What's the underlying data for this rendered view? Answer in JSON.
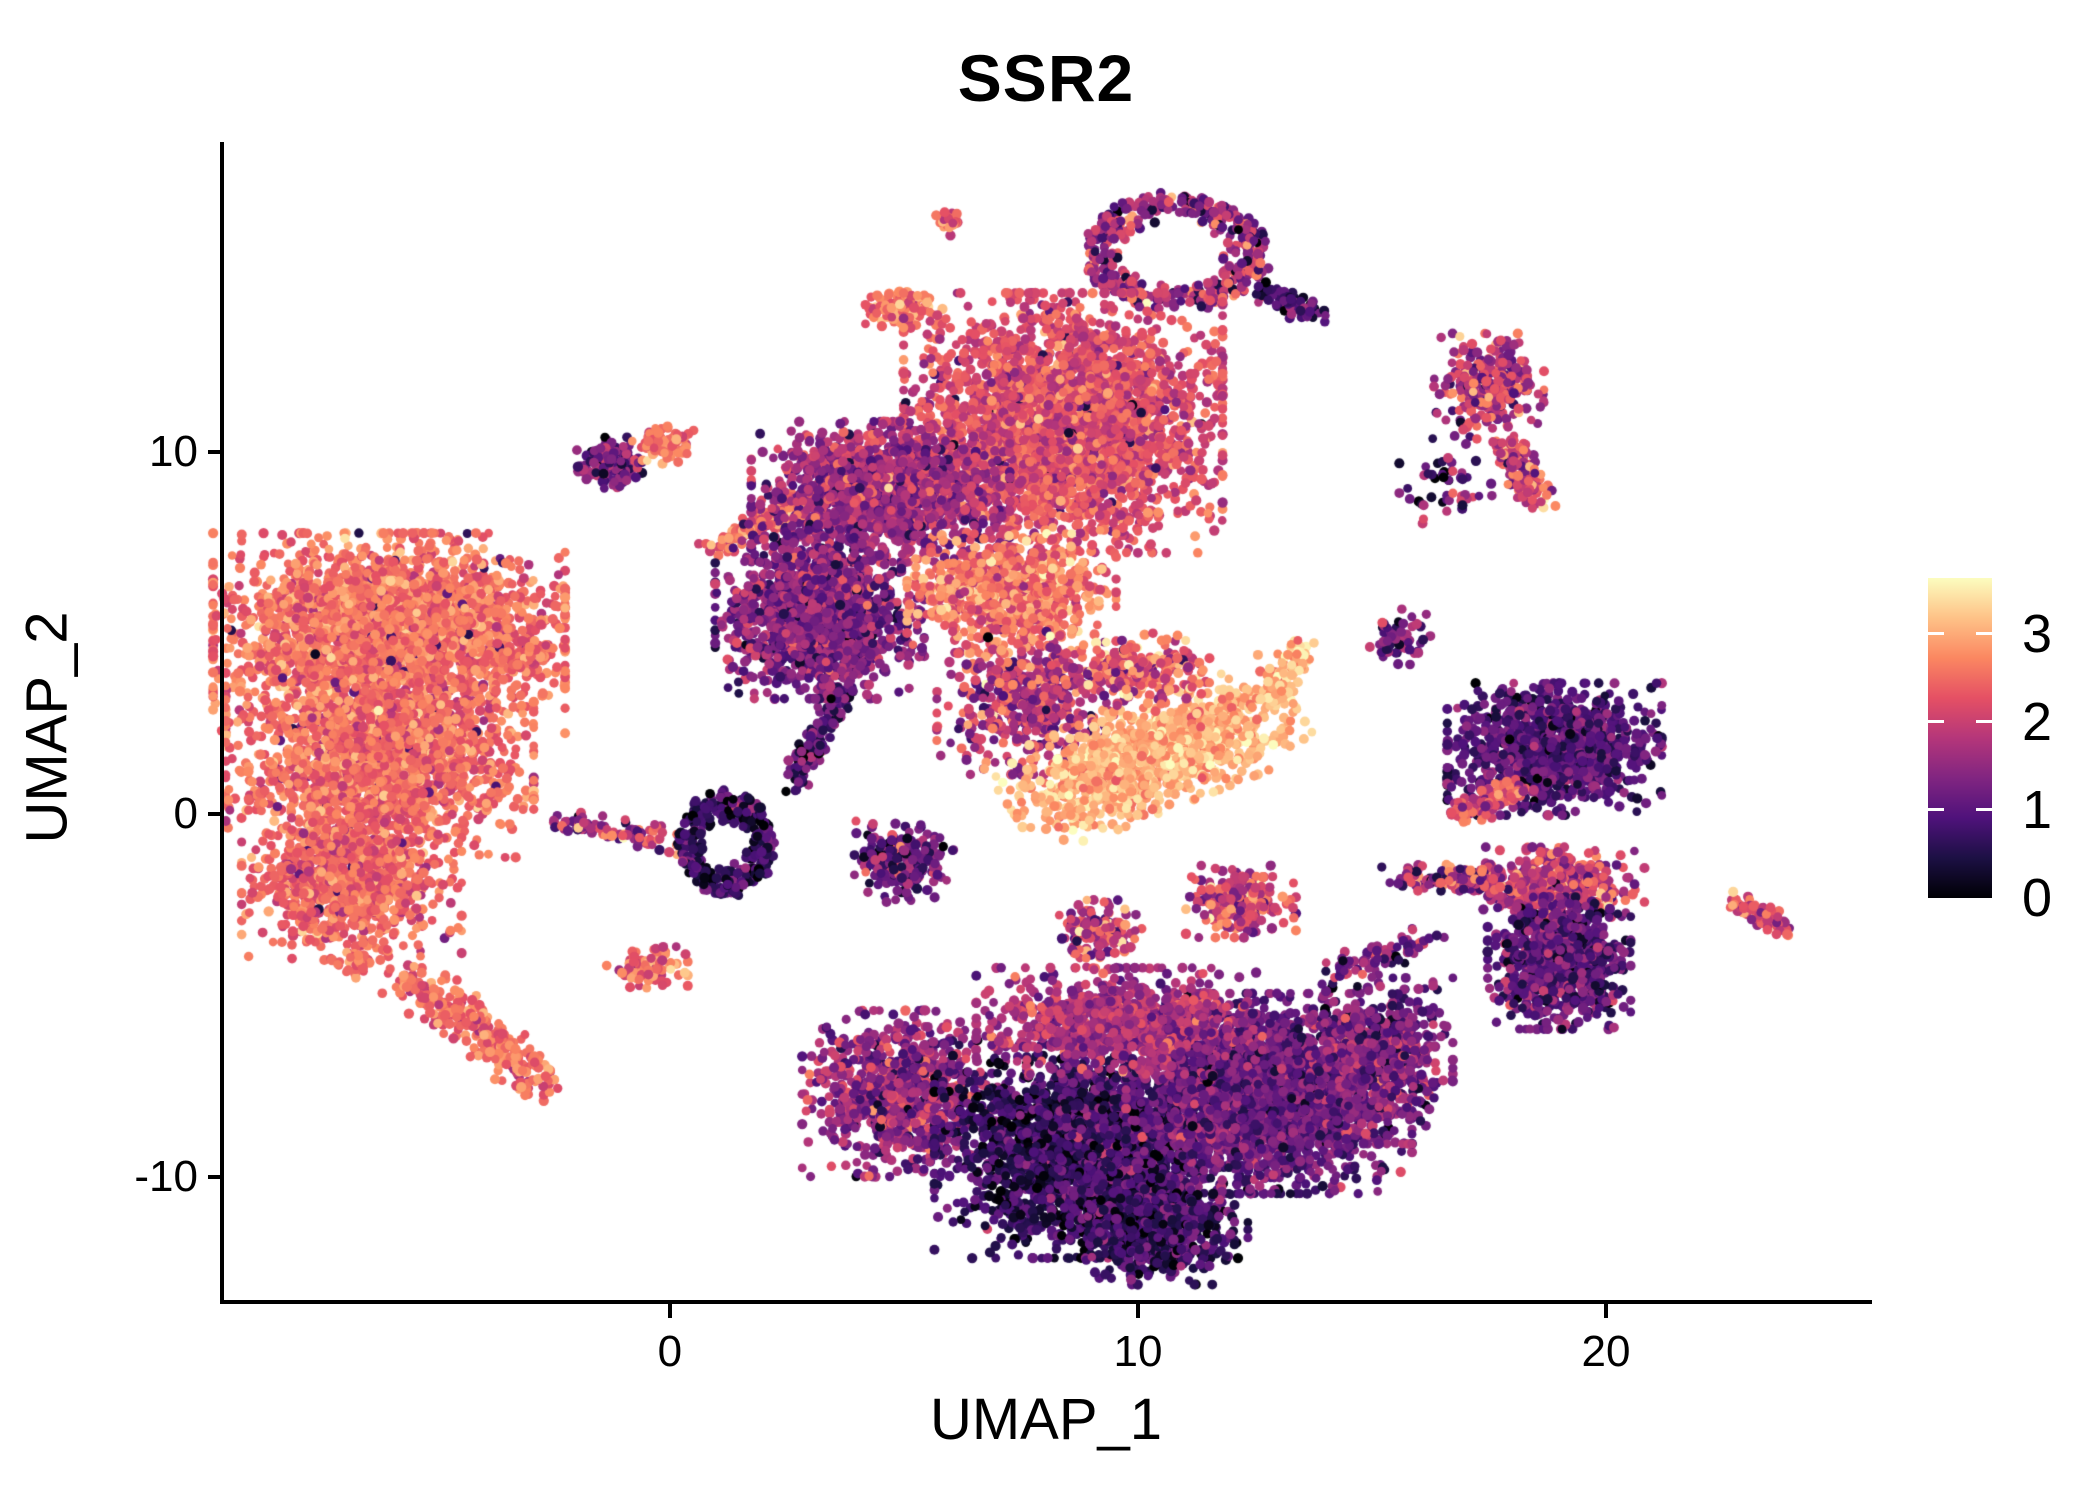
{
  "chart_data": {
    "type": "scatter",
    "title": "SSR2",
    "xlabel": "UMAP_1",
    "ylabel": "UMAP_2",
    "x_ticks": [
      0,
      10,
      20
    ],
    "y_ticks": [
      10,
      0,
      -10
    ],
    "x_range": [
      -9.57,
      25.64
    ],
    "y_range": [
      -13.45,
      18.55
    ],
    "grid": false,
    "point_color_field": "SSR2 expression",
    "colorbar": {
      "position": "right",
      "vmin": 0,
      "vmax": 3.63,
      "ticks": [
        0,
        1,
        2,
        3
      ],
      "tick_labels": [
        "0",
        "1",
        "2",
        "3"
      ],
      "palette": "magma",
      "stops": [
        [
          0.0,
          "#000004"
        ],
        [
          0.125,
          "#1c1044"
        ],
        [
          0.25,
          "#4f127b"
        ],
        [
          0.375,
          "#812581"
        ],
        [
          0.5,
          "#b5367a"
        ],
        [
          0.625,
          "#e55064"
        ],
        [
          0.75,
          "#fb8761"
        ],
        [
          0.875,
          "#fec287"
        ],
        [
          1.0,
          "#fcfdbf"
        ]
      ]
    },
    "clusters": [
      {
        "name": "left-main-upper",
        "shape": "blob",
        "x": -6.0,
        "y": 5.0,
        "rx": 3.2,
        "ry": 2.35,
        "n": 2600,
        "v": 2.55,
        "vsd": 0.3,
        "out_frac": 0.015,
        "out_v": 1.0
      },
      {
        "name": "left-main-mid",
        "shape": "blob",
        "x": -6.2,
        "y": 1.4,
        "rx": 2.8,
        "ry": 2.2,
        "n": 1800,
        "v": 2.5,
        "vsd": 0.3,
        "out_frac": 0.015,
        "out_v": 1.0
      },
      {
        "name": "left-main-lower",
        "shape": "blob",
        "x": -6.8,
        "y": -1.9,
        "rx": 2.0,
        "ry": 1.8,
        "n": 900,
        "v": 2.45,
        "vsd": 0.3,
        "out_frac": 0.02,
        "out_v": 1.0
      },
      {
        "name": "left-tail",
        "shape": "streak",
        "x": -5.6,
        "y": -4.4,
        "x2": -2.7,
        "y2": -7.4,
        "w": 0.55,
        "n": 300,
        "v": 2.5,
        "vsd": 0.3
      },
      {
        "name": "left-tail-blob",
        "shape": "blob",
        "x": -6.7,
        "y": -4.1,
        "rx": 0.35,
        "ry": 0.35,
        "n": 30,
        "v": 2.5,
        "vsd": 0.25
      },
      {
        "name": "left-bridge",
        "shape": "streak",
        "x": -2.35,
        "y": -0.2,
        "x2": 0.6,
        "y2": -0.9,
        "w": 0.3,
        "n": 100,
        "v": 1.8,
        "vsd": 0.7
      },
      {
        "name": "small-salmon-left",
        "shape": "blob",
        "x": -3.0,
        "y": 4.4,
        "rx": 0.5,
        "ry": 0.4,
        "n": 60,
        "v": 2.5,
        "vsd": 0.25
      },
      {
        "name": "pink-small-mid",
        "shape": "blob",
        "x": -0.5,
        "y": -4.2,
        "rx": 0.75,
        "ry": 0.5,
        "n": 90,
        "v": 2.4,
        "vsd": 0.5
      },
      {
        "name": "dark-ring-small",
        "shape": "ring",
        "x": 1.2,
        "y": -0.8,
        "rx": 1.0,
        "ry": 1.4,
        "hole": 0.45,
        "n": 350,
        "v": 0.65,
        "vsd": 0.45
      },
      {
        "name": "dark-funnel",
        "shape": "streak",
        "x": 2.6,
        "y": 0.75,
        "x2": 4.3,
        "y2": 5.1,
        "w": 0.32,
        "n": 200,
        "v": 0.9,
        "vsd": 0.5
      },
      {
        "name": "purple-blob-top-left",
        "shape": "blob",
        "x": -1.3,
        "y": 9.7,
        "rx": 0.6,
        "ry": 0.6,
        "n": 130,
        "v": 1.2,
        "vsd": 0.55
      },
      {
        "name": "salmon-blob-top-left",
        "shape": "blob",
        "x": -0.1,
        "y": 10.2,
        "rx": 0.6,
        "ry": 0.45,
        "n": 90,
        "v": 2.6,
        "vsd": 0.3
      },
      {
        "name": "salmon-streak-upper",
        "shape": "streak",
        "x": 0.9,
        "y": 7.2,
        "x2": 2.8,
        "y2": 8.7,
        "w": 0.32,
        "n": 130,
        "v": 2.5,
        "vsd": 0.35
      },
      {
        "name": "top-salmon-blob",
        "shape": "blob",
        "x": 5.0,
        "y": 14.0,
        "rx": 0.7,
        "ry": 0.45,
        "n": 140,
        "v": 2.6,
        "vsd": 0.35
      },
      {
        "name": "top-tiny-pink",
        "shape": "blob",
        "x": 6.0,
        "y": 16.35,
        "rx": 0.28,
        "ry": 0.32,
        "n": 30,
        "v": 2.5,
        "vsd": 0.35
      },
      {
        "name": "top-ring",
        "shape": "ring",
        "x": 10.8,
        "y": 15.5,
        "rx": 1.95,
        "ry": 1.55,
        "hole": 0.55,
        "n": 450,
        "v": 1.5,
        "vsd": 0.65
      },
      {
        "name": "top-ring-tail",
        "shape": "streak",
        "x": 12.5,
        "y": 14.5,
        "x2": 13.8,
        "y2": 13.8,
        "w": 0.3,
        "n": 80,
        "v": 0.9,
        "vsd": 0.5
      },
      {
        "name": "brain-main",
        "shape": "blob",
        "x": 8.4,
        "y": 10.8,
        "rx": 2.9,
        "ry": 3.05,
        "n": 3000,
        "v": 2.2,
        "vsd": 0.35,
        "out_frac": 0.02,
        "out_v": 0.7
      },
      {
        "name": "brain-left-wing",
        "shape": "blob",
        "x": 4.5,
        "y": 8.9,
        "rx": 2.35,
        "ry": 1.65,
        "n": 1500,
        "v": 1.6,
        "vsd": 0.45
      },
      {
        "name": "brain-lower-left",
        "shape": "blob",
        "x": 3.2,
        "y": 5.6,
        "rx": 1.9,
        "ry": 2.05,
        "n": 1400,
        "v": 1.35,
        "vsd": 0.45
      },
      {
        "name": "brain-orange-patch",
        "shape": "blob",
        "x": 7.3,
        "y": 6.1,
        "rx": 1.9,
        "ry": 1.4,
        "n": 800,
        "v": 2.6,
        "vsd": 0.4
      },
      {
        "name": "brain-bridge",
        "shape": "blob",
        "x": 7.7,
        "y": 3.1,
        "rx": 1.7,
        "ry": 1.7,
        "n": 500,
        "v": 1.8,
        "vsd": 0.6
      },
      {
        "name": "banana-bright",
        "shape": "blob",
        "x": 10.3,
        "y": 1.6,
        "rx": 2.85,
        "ry": 1.25,
        "rot": 27,
        "n": 1300,
        "v": 3.05,
        "vsd": 0.28
      },
      {
        "name": "banana-hook",
        "shape": "streak",
        "x": 12.8,
        "y": 3.1,
        "x2": 13.5,
        "y2": 4.7,
        "w": 0.3,
        "n": 120,
        "v": 3.1,
        "vsd": 0.3
      },
      {
        "name": "banana-top-mix",
        "shape": "blob",
        "x": 10.0,
        "y": 4.0,
        "rx": 1.3,
        "ry": 0.85,
        "n": 250,
        "v": 2.4,
        "vsd": 0.6
      },
      {
        "name": "mid-small-1",
        "shape": "blob",
        "x": 5.0,
        "y": -1.3,
        "rx": 0.9,
        "ry": 0.95,
        "n": 220,
        "v": 1.2,
        "vsd": 0.55
      },
      {
        "name": "mid-small-2",
        "shape": "blob",
        "x": 12.2,
        "y": -2.4,
        "rx": 1.0,
        "ry": 0.85,
        "n": 220,
        "v": 2.1,
        "vsd": 0.6
      },
      {
        "name": "mid-small-3",
        "shape": "blob",
        "x": 9.2,
        "y": -3.3,
        "rx": 0.75,
        "ry": 0.8,
        "n": 150,
        "v": 2.0,
        "vsd": 0.6
      },
      {
        "name": "bottom-left-arm",
        "shape": "blob",
        "x": 5.0,
        "y": -7.7,
        "rx": 1.85,
        "ry": 1.95,
        "n": 900,
        "v": 1.55,
        "vsd": 0.5
      },
      {
        "name": "bottom-dark-core",
        "shape": "blob",
        "x": 9.0,
        "y": -9.3,
        "rx": 2.85,
        "ry": 2.5,
        "n": 2500,
        "v": 0.7,
        "vsd": 0.45
      },
      {
        "name": "bottom-right-mid",
        "shape": "blob",
        "x": 12.8,
        "y": -7.7,
        "rx": 2.6,
        "ry": 2.35,
        "n": 2200,
        "v": 1.15,
        "vsd": 0.4
      },
      {
        "name": "bottom-top-band",
        "shape": "blob",
        "x": 9.6,
        "y": -5.7,
        "rx": 2.6,
        "ry": 1.25,
        "n": 900,
        "v": 1.7,
        "vsd": 0.4
      },
      {
        "name": "bottom-tip",
        "shape": "blob",
        "x": 10.3,
        "y": -11.5,
        "rx": 1.5,
        "ry": 1.25,
        "n": 600,
        "v": 0.75,
        "vsd": 0.4
      },
      {
        "name": "bottom-right-edge",
        "shape": "blob",
        "x": 15.2,
        "y": -6.8,
        "rx": 1.3,
        "ry": 1.95,
        "n": 600,
        "v": 1.3,
        "vsd": 0.45
      },
      {
        "name": "right-wing",
        "shape": "blob",
        "x": 19.0,
        "y": -1.9,
        "rx": 1.55,
        "ry": 0.85,
        "n": 400,
        "v": 2.0,
        "vsd": 0.5
      },
      {
        "name": "right-purple-mass",
        "shape": "blob",
        "x": 19.0,
        "y": -4.1,
        "rx": 1.3,
        "ry": 1.55,
        "n": 900,
        "v": 1.0,
        "vsd": 0.45
      },
      {
        "name": "right-chain",
        "shape": "streak",
        "x": 15.5,
        "y": -1.7,
        "x2": 17.8,
        "y2": -1.9,
        "w": 0.35,
        "n": 120,
        "v": 1.7,
        "vsd": 0.7
      },
      {
        "name": "bottom-right-link",
        "shape": "streak",
        "x": 14.1,
        "y": -4.5,
        "x2": 16.2,
        "y2": -3.4,
        "w": 0.4,
        "n": 80,
        "v": 1.4,
        "vsd": 0.6
      },
      {
        "name": "right-fish",
        "shape": "blob",
        "x": 18.9,
        "y": 1.8,
        "rx": 1.95,
        "ry": 1.55,
        "n": 1100,
        "v": 0.95,
        "vsd": 0.4
      },
      {
        "name": "right-fish-tail",
        "shape": "streak",
        "x": 16.9,
        "y": 0.0,
        "x2": 18.2,
        "y2": 0.7,
        "w": 0.3,
        "n": 150,
        "v": 2.2,
        "vsd": 0.4
      },
      {
        "name": "right-comma",
        "shape": "blob",
        "x": 17.5,
        "y": 11.8,
        "rx": 1.0,
        "ry": 1.25,
        "n": 300,
        "v": 1.8,
        "vsd": 0.6
      },
      {
        "name": "right-comma-tail",
        "shape": "streak",
        "x": 17.8,
        "y": 10.3,
        "x2": 18.6,
        "y2": 8.5,
        "w": 0.35,
        "n": 150,
        "v": 2.1,
        "vsd": 0.6
      },
      {
        "name": "far-right-streak",
        "shape": "streak",
        "x": 22.8,
        "y": -2.4,
        "x2": 23.9,
        "y2": -3.2,
        "w": 0.3,
        "n": 80,
        "v": 2.1,
        "vsd": 0.5
      },
      {
        "name": "right-sparse-upper",
        "shape": "blob",
        "x": 16.7,
        "y": 8.9,
        "rx": 0.95,
        "ry": 1.25,
        "n": 50,
        "v": 1.1,
        "vsd": 0.6
      },
      {
        "name": "right-sparse-mid",
        "shape": "blob",
        "x": 15.6,
        "y": 4.9,
        "rx": 0.55,
        "ry": 0.65,
        "n": 60,
        "v": 1.2,
        "vsd": 0.6
      }
    ]
  }
}
